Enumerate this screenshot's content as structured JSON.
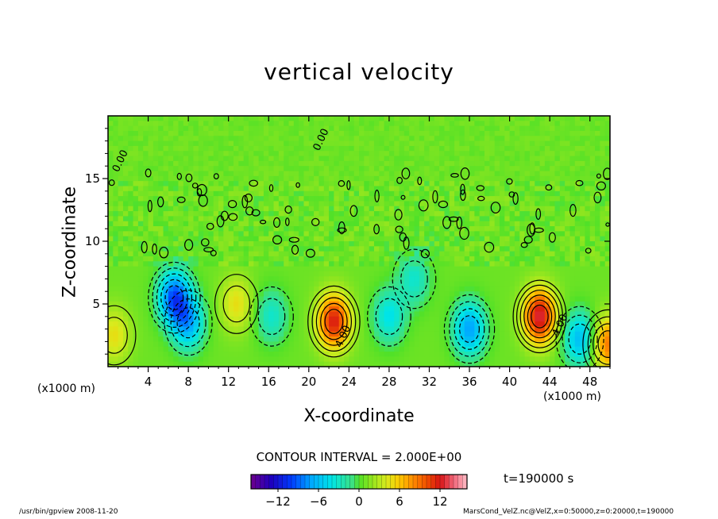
{
  "chart_data": {
    "type": "heatmap",
    "title": "vertical velocity",
    "xlabel": "X-coordinate",
    "ylabel": "Z-coordinate",
    "x_unit_left": "(x1000 m)",
    "x_unit_right": "(x1000 m)",
    "xlim": [
      0,
      50
    ],
    "ylim": [
      0,
      20
    ],
    "x_ticks": [
      4,
      8,
      12,
      16,
      20,
      24,
      28,
      32,
      36,
      40,
      44,
      48
    ],
    "y_ticks": [
      5,
      10,
      15
    ],
    "contour_labels": [
      {
        "text": "0.00",
        "x": 1.5,
        "y": 16.3
      },
      {
        "text": "0.00",
        "x": 21.5,
        "y": 18.0
      },
      {
        "text": "4.00",
        "x": 23.7,
        "y": 2.3
      },
      {
        "text": "4.00",
        "x": 45.3,
        "y": 3.2
      }
    ],
    "contour_interval": "CONTOUR INTERVAL = 2.000E+00",
    "colorbar": {
      "ticks": [
        -12,
        -6,
        0,
        6,
        12
      ],
      "range": [
        -16,
        16
      ]
    },
    "time": "t=190000 s",
    "features": [
      {
        "kind": "updraft",
        "x": 22.5,
        "y": 3.6,
        "peak": 11
      },
      {
        "kind": "updraft",
        "x": 43.0,
        "y": 4.0,
        "peak": 12
      },
      {
        "kind": "updraft",
        "x": 49.8,
        "y": 1.8,
        "peak": 8
      },
      {
        "kind": "updraft",
        "x": 0.6,
        "y": 2.5,
        "peak": 4
      },
      {
        "kind": "updraft",
        "x": 12.8,
        "y": 5.0,
        "peak": 4
      },
      {
        "kind": "downdraft",
        "x": 6.6,
        "y": 5.5,
        "peak": -10
      },
      {
        "kind": "downdraft",
        "x": 8.0,
        "y": 3.5,
        "peak": -7
      },
      {
        "kind": "downdraft",
        "x": 36.0,
        "y": 3.0,
        "peak": -8
      },
      {
        "kind": "downdraft",
        "x": 47.0,
        "y": 2.2,
        "peak": -7
      },
      {
        "kind": "downdraft",
        "x": 28.0,
        "y": 4.0,
        "peak": -5
      },
      {
        "kind": "downdraft",
        "x": 16.3,
        "y": 4.0,
        "peak": -4
      },
      {
        "kind": "downdraft",
        "x": 30.5,
        "y": 7.0,
        "peak": -4
      }
    ]
  },
  "footer": {
    "left": "/usr/bin/gpview   2008-11-20",
    "right": "MarsCond_VelZ.nc@VelZ,x=0:50000,z=0:20000,t=190000"
  }
}
